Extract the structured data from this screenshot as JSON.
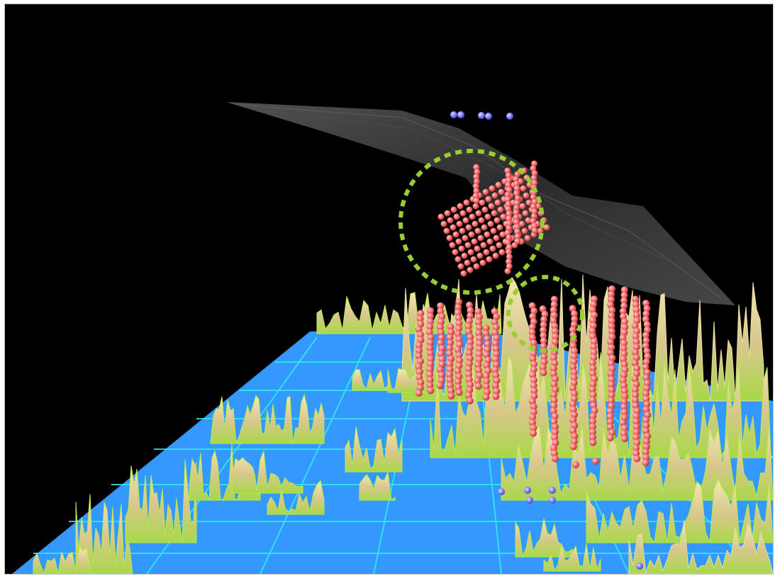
{
  "scene": {
    "background_color": "#000000",
    "ocean_color": "#3399ff",
    "grid_line_color": "#33e6f0",
    "terrain_colors": [
      "#f0e6a0",
      "#d9c88a",
      "#b8e84a"
    ],
    "fault_surface_color": "#3a3a3a",
    "hypocenter_color": "#ff7b7b",
    "station_color": "#8a8cff",
    "highlight_circle_color": "#9acd32",
    "highlight_circle_style": "dashed"
  }
}
